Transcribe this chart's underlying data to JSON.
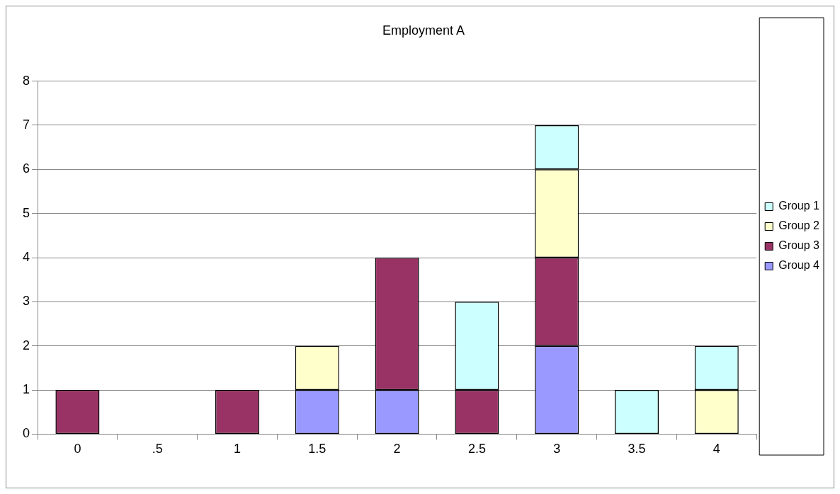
{
  "chart_data": {
    "type": "bar",
    "title": "Employment A",
    "categories": [
      "0",
      ".5",
      "1",
      "1.5",
      "2",
      "2.5",
      "3",
      "3.5",
      "4"
    ],
    "stacked": true,
    "series": [
      {
        "name": "Group 4",
        "color": "#9999ff",
        "values": [
          null,
          null,
          null,
          1,
          1,
          null,
          2,
          null,
          null
        ]
      },
      {
        "name": "Group 3",
        "color": "#993366",
        "values": [
          1,
          null,
          1,
          null,
          3,
          1,
          2,
          null,
          null
        ]
      },
      {
        "name": "Group 2",
        "color": "#ffffcc",
        "values": [
          null,
          null,
          null,
          1,
          null,
          null,
          2,
          null,
          1
        ]
      },
      {
        "name": "Group 1",
        "color": "#ccffff",
        "values": [
          null,
          null,
          null,
          null,
          null,
          2,
          1,
          1,
          1
        ]
      }
    ],
    "ylim": [
      0,
      8
    ],
    "yticks": [
      0,
      1,
      2,
      3,
      4,
      5,
      6,
      7,
      8
    ],
    "grid": "y",
    "legend": "right"
  }
}
